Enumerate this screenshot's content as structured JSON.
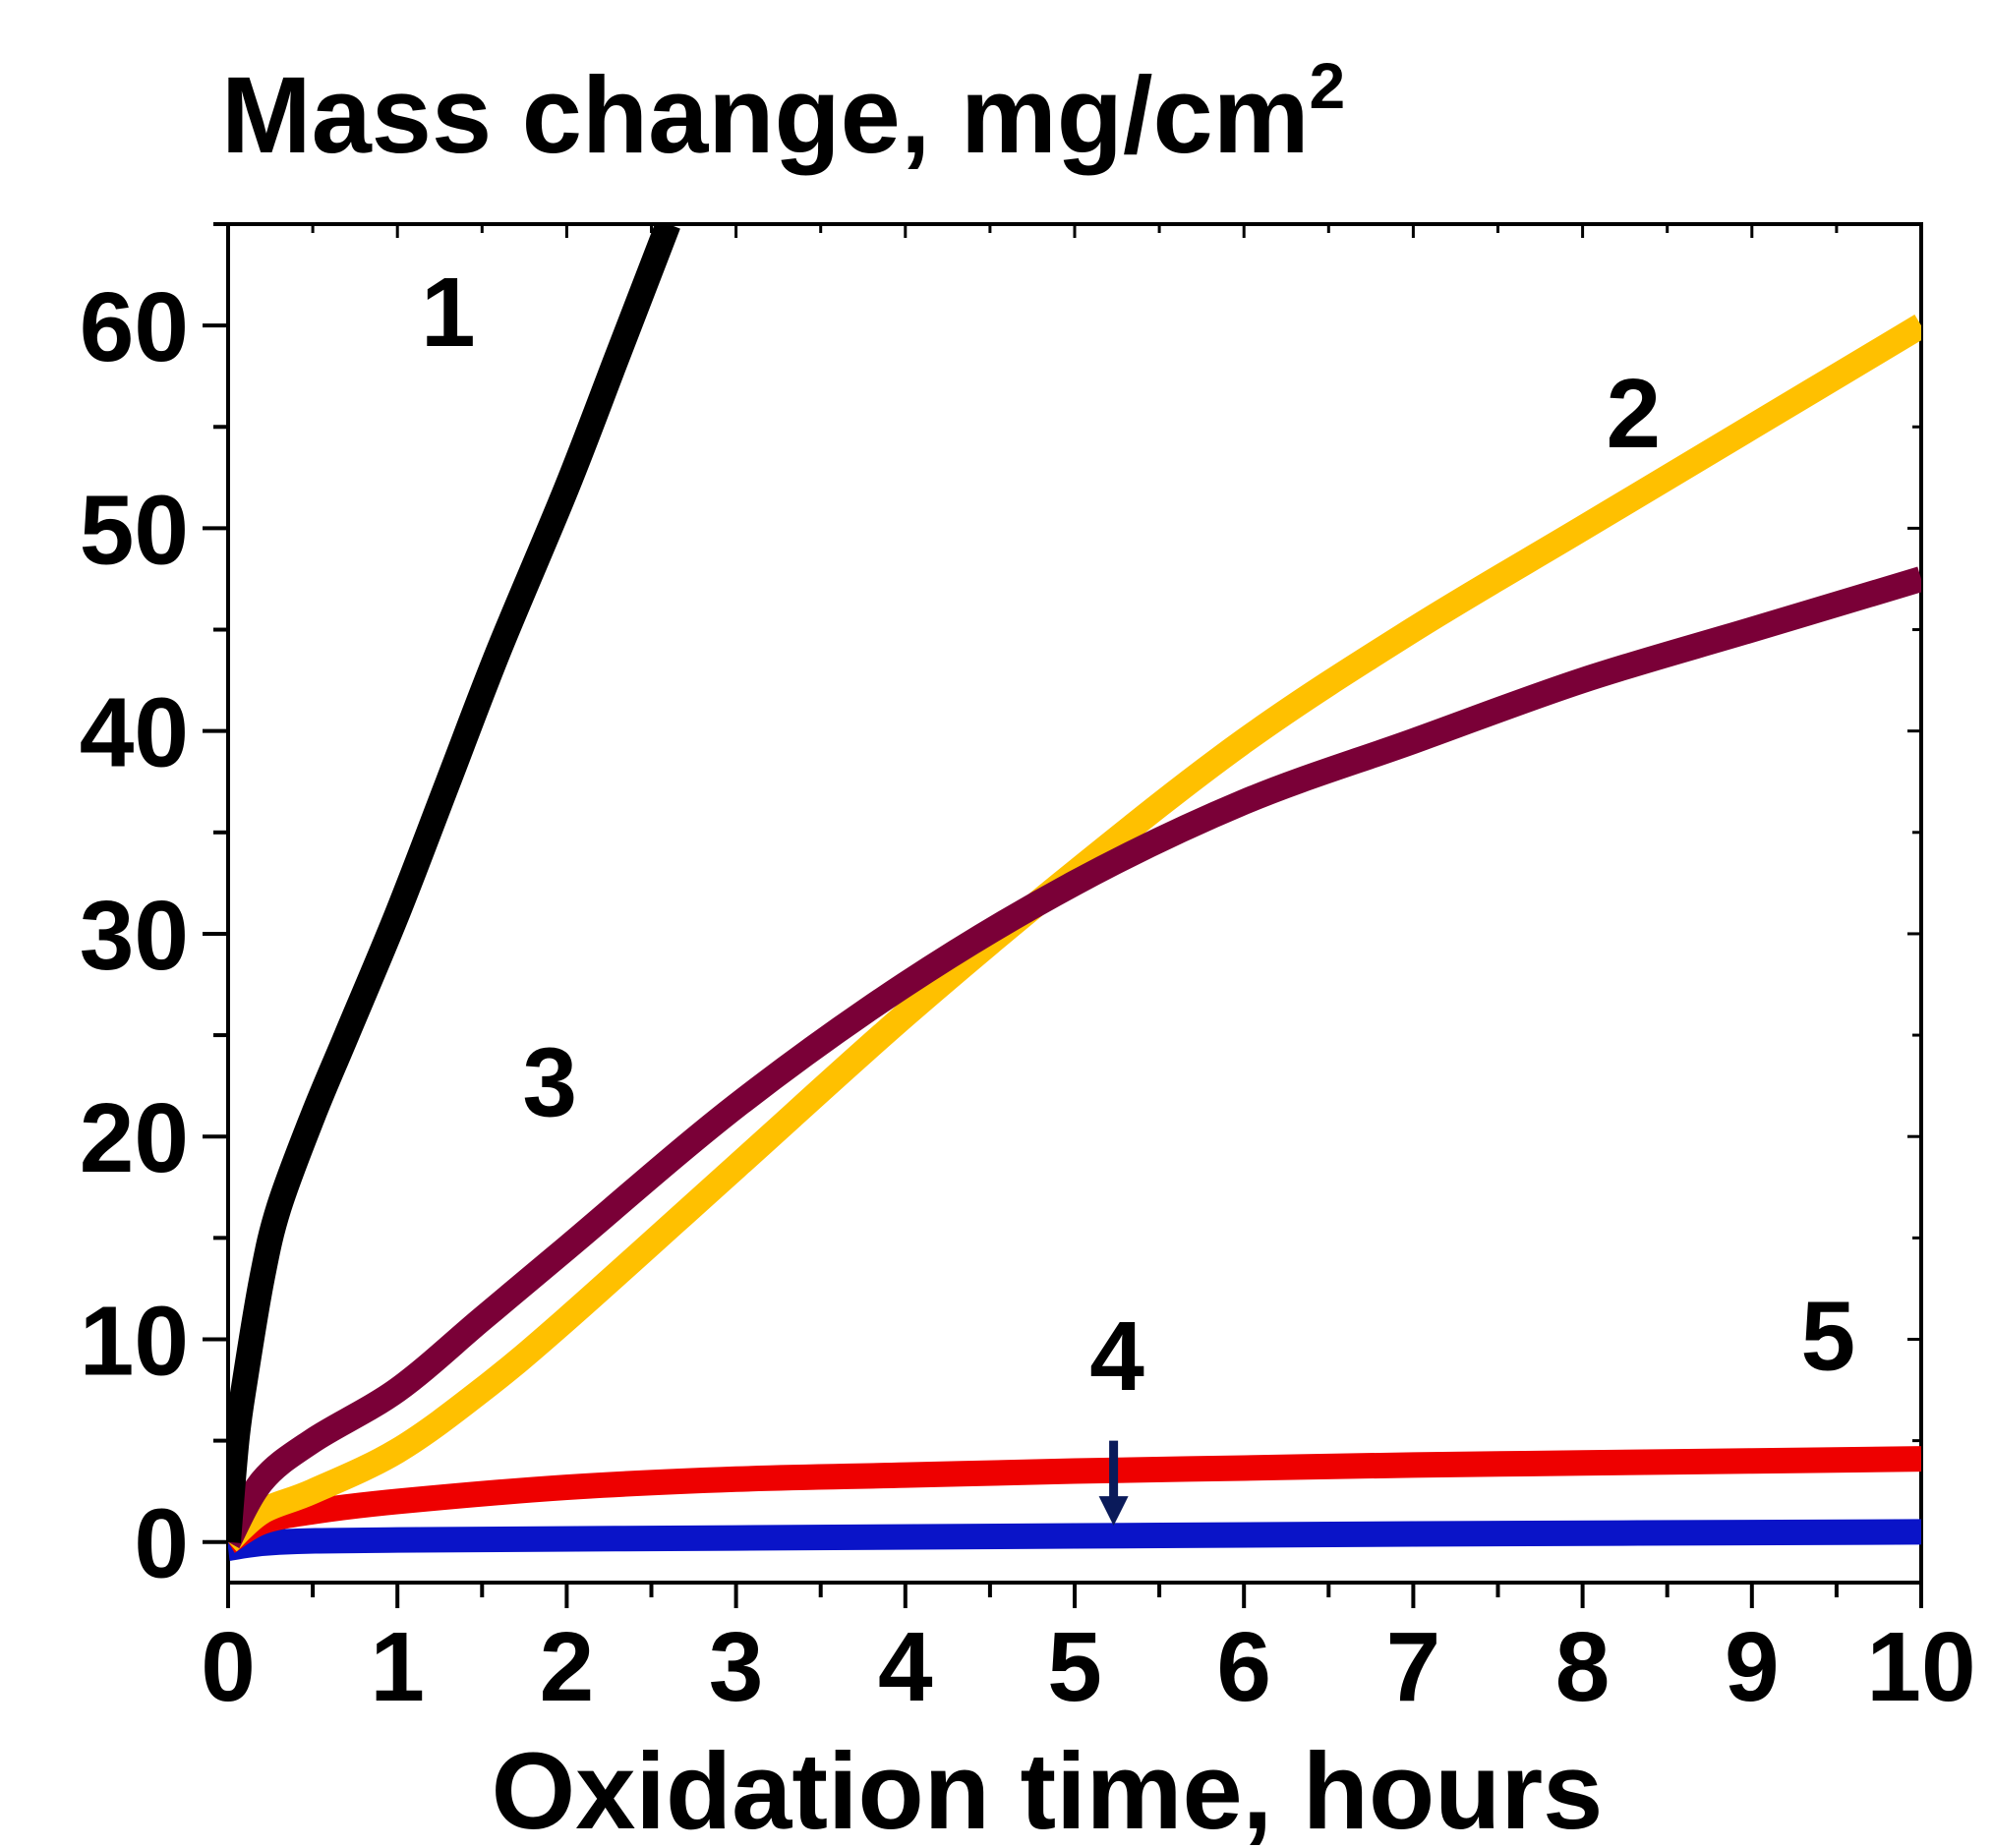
{
  "chart_data": {
    "type": "line",
    "title": "",
    "ylabel": "Mass change, mg/cm",
    "ylabel_superscript": "2",
    "xlabel": "Oxidation time, hours",
    "xlim": [
      0,
      10
    ],
    "ylim": [
      -2,
      65
    ],
    "x_ticks": [
      0,
      1,
      2,
      3,
      4,
      5,
      6,
      7,
      8,
      9,
      10
    ],
    "y_ticks": [
      0,
      10,
      20,
      30,
      40,
      50,
      60
    ],
    "x_tick_labels": [
      "0",
      "1",
      "2",
      "3",
      "4",
      "5",
      "6",
      "7",
      "8",
      "9",
      "10"
    ],
    "y_tick_labels": [
      "0",
      "10",
      "20",
      "30",
      "40",
      "50",
      "60"
    ],
    "grid": false,
    "series": [
      {
        "name": "1",
        "color": "#000000",
        "x": [
          0,
          0.05,
          0.1,
          0.2,
          0.3,
          0.5,
          0.7,
          1.0,
          1.3,
          1.6,
          2.0,
          2.3,
          2.6
        ],
        "y": [
          0,
          5,
          8,
          13,
          16.5,
          21,
          25,
          31,
          37.5,
          44,
          52,
          58.5,
          65
        ]
      },
      {
        "name": "2",
        "color": "#ffc000",
        "x": [
          0,
          0.2,
          0.5,
          1.0,
          1.5,
          2.0,
          3.0,
          4.0,
          5.0,
          6.0,
          7.0,
          8.0,
          9.0,
          10.0
        ],
        "y": [
          0,
          1.5,
          2.5,
          4.5,
          7.5,
          11,
          18.5,
          26,
          33,
          39.5,
          45,
          50,
          55,
          60
        ]
      },
      {
        "name": "3",
        "color": "#7a0037",
        "x": [
          0,
          0.2,
          0.5,
          1.0,
          1.5,
          2.0,
          3.0,
          4.0,
          5.0,
          6.0,
          7.0,
          8.0,
          9.0,
          10.0
        ],
        "y": [
          0,
          3,
          5,
          7.5,
          11,
          14.5,
          21.5,
          27.5,
          32.5,
          36.5,
          39.5,
          42.5,
          45,
          47.5
        ]
      },
      {
        "name": "4",
        "color": "#0a14c8",
        "x": [
          0,
          0.3,
          1,
          3,
          5,
          7,
          10
        ],
        "y": [
          -0.3,
          0,
          0.1,
          0.2,
          0.3,
          0.4,
          0.5
        ]
      },
      {
        "name": "5",
        "color": "#ee0000",
        "x": [
          0,
          0.2,
          0.5,
          1.0,
          2.0,
          3.0,
          4.0,
          5.0,
          6.0,
          7.0,
          8.0,
          9.0,
          10.0
        ],
        "y": [
          0,
          1,
          1.5,
          2,
          2.7,
          3.1,
          3.3,
          3.5,
          3.65,
          3.8,
          3.9,
          4.0,
          4.1
        ]
      }
    ],
    "annotations": [
      {
        "text": "1",
        "x": 1.3,
        "y": 59
      },
      {
        "text": "2",
        "x": 8.3,
        "y": 54
      },
      {
        "text": "3",
        "x": 1.9,
        "y": 21
      },
      {
        "text": "4",
        "x": 5.25,
        "y": 7.5
      },
      {
        "text": "5",
        "x": 9.45,
        "y": 8.5
      }
    ],
    "arrow": {
      "from_x": 5.23,
      "from_y": 5,
      "to_x": 5.23,
      "to_y": 1
    }
  }
}
